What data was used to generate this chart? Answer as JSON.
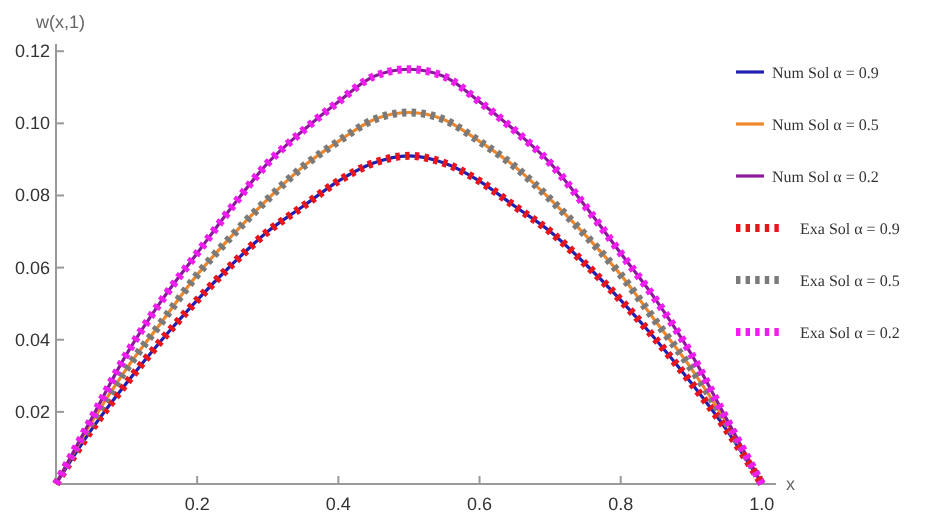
{
  "chart_data": {
    "type": "line",
    "xlabel": "x",
    "ylabel": "w(x,1)",
    "x": [
      0,
      0.05,
      0.1,
      0.15,
      0.2,
      0.25,
      0.3,
      0.35,
      0.4,
      0.45,
      0.5,
      0.55,
      0.6,
      0.65,
      0.7,
      0.75,
      0.8,
      0.85,
      0.9,
      0.95,
      1
    ],
    "xlim": [
      0,
      1.02
    ],
    "ylim": [
      0,
      0.122
    ],
    "xticks": [
      {
        "value": 0,
        "label": null
      },
      0.2,
      0.4,
      0.6,
      0.8,
      {
        "value": 1,
        "label": "1.0"
      }
    ],
    "yticks": [
      {
        "value": 0,
        "label": null
      },
      0.02,
      0.04,
      0.06,
      0.08,
      {
        "value": 0.1,
        "label": "0.10"
      },
      0.12
    ],
    "legend": "right",
    "grid": false,
    "marker": "none",
    "series": [
      {
        "name": "Num Sol α = 0.9",
        "color": "#1f1fb4",
        "line_style": "solid",
        "values": [
          0,
          0.015,
          0.028,
          0.04,
          0.051,
          0.061,
          0.07,
          0.077,
          0.084,
          0.089,
          0.091,
          0.089,
          0.084,
          0.077,
          0.07,
          0.061,
          0.051,
          0.04,
          0.028,
          0.015,
          0
        ]
      },
      {
        "name": "Num Sol α = 0.5",
        "color": "#f0862a",
        "line_style": "solid",
        "values": [
          0,
          0.017,
          0.032,
          0.045,
          0.058,
          0.069,
          0.079,
          0.088,
          0.095,
          0.101,
          0.103,
          0.101,
          0.095,
          0.088,
          0.079,
          0.069,
          0.058,
          0.045,
          0.032,
          0.017,
          0
        ]
      },
      {
        "name": "Num Sol α = 0.2",
        "color": "#8b1a9a",
        "line_style": "solid",
        "values": [
          0,
          0.018,
          0.036,
          0.051,
          0.064,
          0.077,
          0.089,
          0.098,
          0.106,
          0.113,
          0.115,
          0.113,
          0.106,
          0.098,
          0.089,
          0.077,
          0.064,
          0.051,
          0.036,
          0.018,
          0
        ]
      },
      {
        "name": "Exa Sol α = 0.9",
        "color": "#e8161c",
        "line_style": "dotted",
        "values": [
          0,
          0.015,
          0.028,
          0.04,
          0.051,
          0.061,
          0.07,
          0.077,
          0.084,
          0.089,
          0.091,
          0.089,
          0.084,
          0.077,
          0.07,
          0.061,
          0.051,
          0.04,
          0.028,
          0.015,
          0
        ]
      },
      {
        "name": "Exa Sol α = 0.5",
        "color": "#7a7a7a",
        "line_style": "dotted",
        "values": [
          0,
          0.017,
          0.032,
          0.045,
          0.058,
          0.069,
          0.079,
          0.088,
          0.095,
          0.101,
          0.103,
          0.101,
          0.095,
          0.088,
          0.079,
          0.069,
          0.058,
          0.045,
          0.032,
          0.017,
          0
        ]
      },
      {
        "name": "Exa Sol α = 0.2",
        "color": "#f01cf0",
        "line_style": "dotted",
        "values": [
          0,
          0.018,
          0.036,
          0.051,
          0.064,
          0.077,
          0.089,
          0.098,
          0.106,
          0.113,
          0.115,
          0.113,
          0.106,
          0.098,
          0.089,
          0.077,
          0.064,
          0.051,
          0.036,
          0.018,
          0
        ]
      }
    ]
  }
}
